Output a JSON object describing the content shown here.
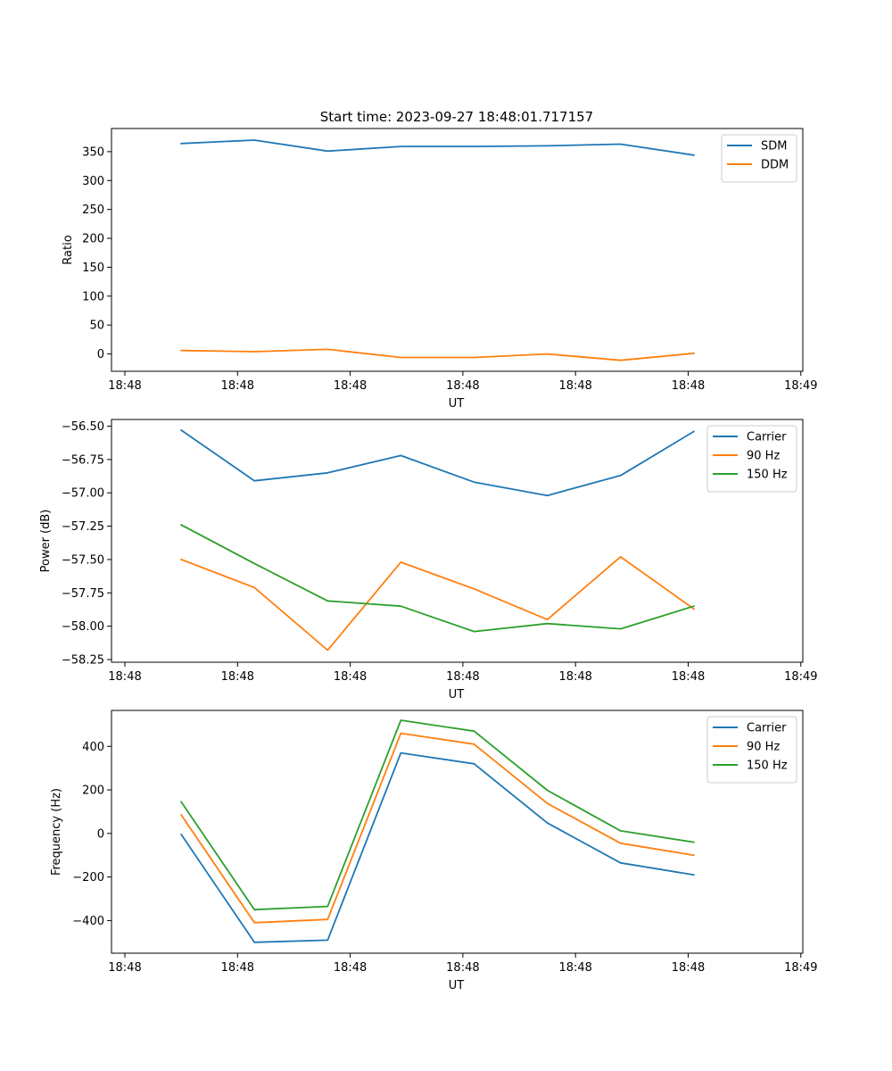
{
  "figure": {
    "title": "Start time: 2023-09-27 18:48:01.717157"
  },
  "chart_data": [
    {
      "type": "line",
      "title": "Start time: 2023-09-27 18:48:01.717157",
      "xlabel": "UT",
      "ylabel": "Ratio",
      "x_tick_labels": [
        "18:48",
        "18:48",
        "18:48",
        "18:48",
        "18:48",
        "18:48",
        "18:49"
      ],
      "y_ticks": [
        0,
        50,
        100,
        150,
        200,
        250,
        300,
        350
      ],
      "y_tick_labels": [
        "0",
        "50",
        "100",
        "150",
        "200",
        "250",
        "300",
        "350"
      ],
      "xlim": [
        0,
        6
      ],
      "ylim": [
        -30,
        390
      ],
      "x": [
        0.5,
        1.15,
        1.8,
        2.45,
        3.1,
        3.75,
        4.4,
        5.05
      ],
      "series": [
        {
          "name": "SDM",
          "color": "#1f77b4",
          "values": [
            364,
            370,
            351,
            359,
            359,
            360,
            363,
            344
          ]
        },
        {
          "name": "DDM",
          "color": "#ff7f0e",
          "values": [
            6,
            4,
            8,
            -6,
            -6,
            0,
            -11,
            1
          ]
        }
      ],
      "legend": "top-right",
      "grid": false
    },
    {
      "type": "line",
      "title": "",
      "xlabel": "UT",
      "ylabel": "Power (dB)",
      "x_tick_labels": [
        "18:48",
        "18:48",
        "18:48",
        "18:48",
        "18:48",
        "18:48",
        "18:49"
      ],
      "y_ticks": [
        -58.25,
        -58.0,
        -57.75,
        -57.5,
        -57.25,
        -57.0,
        -56.75,
        -56.5
      ],
      "y_tick_labels": [
        "−58.25",
        "−58.00",
        "−57.75",
        "−57.50",
        "−57.25",
        "−57.00",
        "−56.75",
        "−56.50"
      ],
      "xlim": [
        0,
        6
      ],
      "ylim": [
        -58.27,
        -56.45
      ],
      "x": [
        0.5,
        1.15,
        1.8,
        2.45,
        3.1,
        3.75,
        4.4,
        5.05
      ],
      "series": [
        {
          "name": "Carrier",
          "color": "#1f77b4",
          "values": [
            -56.53,
            -56.91,
            -56.85,
            -56.72,
            -56.92,
            -57.02,
            -56.87,
            -56.54
          ]
        },
        {
          "name": "90 Hz",
          "color": "#ff7f0e",
          "values": [
            -57.5,
            -57.71,
            -58.18,
            -57.52,
            -57.72,
            -57.95,
            -57.48,
            -57.87
          ]
        },
        {
          "name": "150 Hz",
          "color": "#2ca02c",
          "values": [
            -57.24,
            -57.53,
            -57.81,
            -57.85,
            -58.04,
            -57.98,
            -58.02,
            -57.85
          ]
        }
      ],
      "legend": "top-right",
      "grid": false
    },
    {
      "type": "line",
      "title": "",
      "xlabel": "UT",
      "ylabel": "Frequency (Hz)",
      "x_tick_labels": [
        "18:48",
        "18:48",
        "18:48",
        "18:48",
        "18:48",
        "18:48",
        "18:49"
      ],
      "y_ticks": [
        -400,
        -200,
        0,
        200,
        400
      ],
      "y_tick_labels": [
        "−400",
        "−200",
        "0",
        "200",
        "400"
      ],
      "xlim": [
        0,
        6
      ],
      "ylim": [
        -550,
        565
      ],
      "x": [
        0.5,
        1.15,
        1.8,
        2.45,
        3.1,
        3.75,
        4.4,
        5.05
      ],
      "series": [
        {
          "name": "Carrier",
          "color": "#1f77b4",
          "values": [
            -5,
            -500,
            -490,
            370,
            320,
            48,
            -135,
            -190
          ]
        },
        {
          "name": "90 Hz",
          "color": "#ff7f0e",
          "values": [
            85,
            -410,
            -395,
            460,
            410,
            138,
            -45,
            -100
          ]
        },
        {
          "name": "150 Hz",
          "color": "#2ca02c",
          "values": [
            145,
            -350,
            -335,
            520,
            470,
            198,
            12,
            -40
          ]
        }
      ],
      "legend": "top-right",
      "grid": false
    }
  ]
}
